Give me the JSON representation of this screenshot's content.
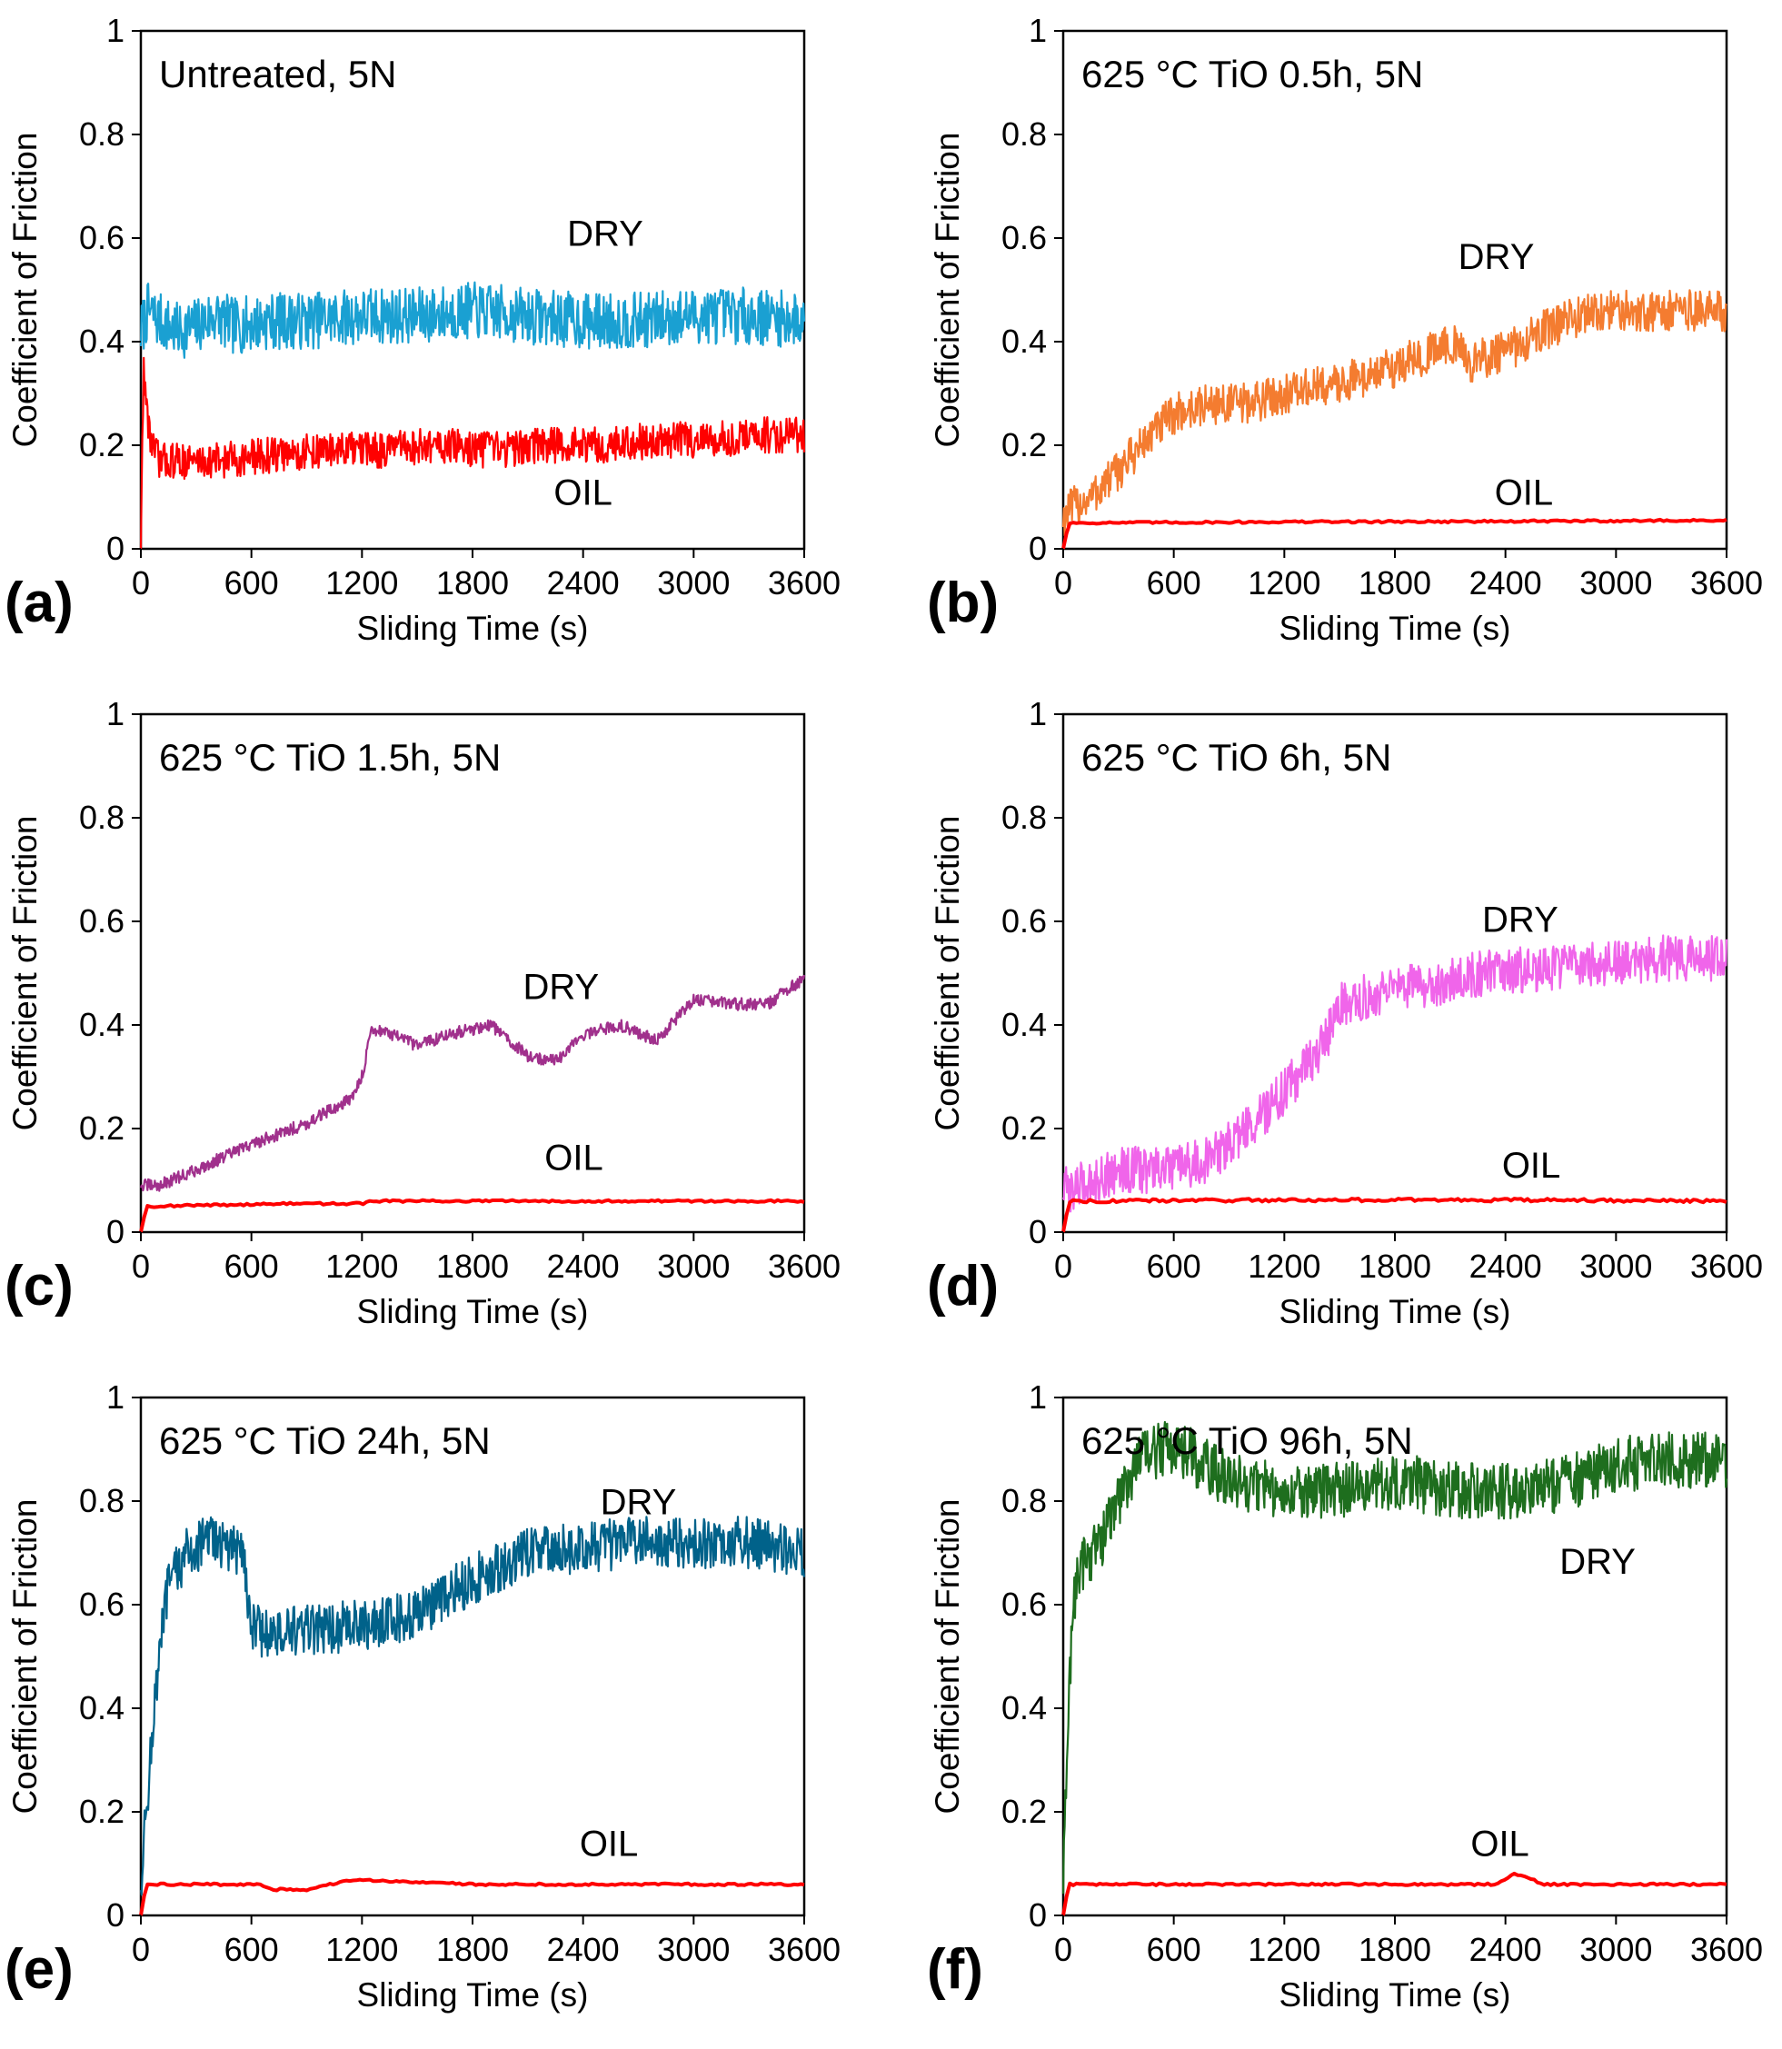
{
  "chart_data": [
    {
      "type": "line",
      "panel": "(a)",
      "title": "Untreated, 5N",
      "xlabel": "Sliding Time (s)",
      "ylabel": "Coefficient of Friction",
      "xlim": [
        0,
        3600
      ],
      "ylim": [
        0,
        1
      ],
      "xticks": [
        "0",
        "600",
        "1200",
        "1800",
        "2400",
        "3000",
        "3600"
      ],
      "yticks": [
        "0",
        "0.2",
        "0.4",
        "0.6",
        "0.8",
        "1"
      ],
      "series": [
        {
          "name": "DRY",
          "color": "#1aa0d2",
          "label_pos": [
            2520,
            0.585
          ],
          "x": [
            0,
            40,
            100,
            200,
            300,
            400,
            500,
            700,
            900,
            1200,
            1500,
            1800,
            2100,
            2400,
            2700,
            3000,
            3300,
            3600
          ],
          "y": [
            0.42,
            0.46,
            0.44,
            0.42,
            0.43,
            0.45,
            0.43,
            0.44,
            0.44,
            0.45,
            0.45,
            0.46,
            0.45,
            0.44,
            0.44,
            0.45,
            0.45,
            0.44
          ],
          "noise": 0.055
        },
        {
          "name": "OIL",
          "color": "#ff0000",
          "label_pos": [
            2400,
            0.085
          ],
          "x": [
            0,
            15,
            30,
            60,
            100,
            200,
            400,
            700,
            1000,
            1300,
            1600,
            1900,
            2200,
            2500,
            2800,
            3100,
            3400,
            3600
          ],
          "y": [
            0.0,
            0.36,
            0.27,
            0.2,
            0.17,
            0.17,
            0.17,
            0.18,
            0.19,
            0.19,
            0.2,
            0.19,
            0.2,
            0.2,
            0.21,
            0.21,
            0.22,
            0.22
          ],
          "noise": 0.035
        }
      ]
    },
    {
      "type": "line",
      "panel": "(b)",
      "title": "625 °C TiO 0.5h, 5N",
      "xlabel": "Sliding Time (s)",
      "ylabel": "Coefficient of Friction",
      "xlim": [
        0,
        3600
      ],
      "ylim": [
        0,
        1
      ],
      "xticks": [
        "0",
        "600",
        "1200",
        "1800",
        "2400",
        "3000",
        "3600"
      ],
      "yticks": [
        "0",
        "0.2",
        "0.4",
        "0.6",
        "0.8",
        "1"
      ],
      "series": [
        {
          "name": "DRY",
          "color": "#f47c30",
          "label_pos": [
            2350,
            0.54
          ],
          "x": [
            0,
            50,
            150,
            300,
            450,
            600,
            800,
            1000,
            1200,
            1500,
            1800,
            2000,
            2100,
            2200,
            2400,
            2600,
            2800,
            3000,
            3300,
            3600
          ],
          "y": [
            0.06,
            0.08,
            0.1,
            0.15,
            0.21,
            0.26,
            0.28,
            0.28,
            0.3,
            0.32,
            0.35,
            0.38,
            0.4,
            0.36,
            0.38,
            0.42,
            0.45,
            0.46,
            0.46,
            0.46
          ],
          "noise": 0.04
        },
        {
          "name": "OIL",
          "color": "#ff0000",
          "label_pos": [
            2500,
            0.085
          ],
          "x": [
            0,
            30,
            60,
            1200,
            2400,
            3600
          ],
          "y": [
            0.0,
            0.05,
            0.05,
            0.052,
            0.053,
            0.055
          ],
          "noise": 0.002
        }
      ]
    },
    {
      "type": "line",
      "panel": "(c)",
      "title": "625 °C TiO 1.5h, 5N",
      "xlabel": "Sliding Time (s)",
      "ylabel": "Coefficient of Friction",
      "xlim": [
        0,
        3600
      ],
      "ylim": [
        0,
        1
      ],
      "xticks": [
        "0",
        "600",
        "1200",
        "1800",
        "2400",
        "3000",
        "3600"
      ],
      "yticks": [
        "0",
        "0.2",
        "0.4",
        "0.6",
        "0.8",
        "1"
      ],
      "series": [
        {
          "name": "DRY",
          "color": "#a0308c",
          "label_pos": [
            2280,
            0.45
          ],
          "x": [
            0,
            100,
            300,
            600,
            900,
            1150,
            1200,
            1250,
            1300,
            1500,
            1650,
            1900,
            2100,
            2250,
            2400,
            2600,
            2800,
            3000,
            3200,
            3400,
            3600
          ],
          "y": [
            0.09,
            0.09,
            0.12,
            0.17,
            0.21,
            0.26,
            0.3,
            0.39,
            0.39,
            0.36,
            0.38,
            0.4,
            0.34,
            0.33,
            0.38,
            0.4,
            0.37,
            0.45,
            0.44,
            0.44,
            0.49
          ],
          "noise": 0.012
        },
        {
          "name": "OIL",
          "color": "#ff0000",
          "label_pos": [
            2350,
            0.12
          ],
          "x": [
            0,
            30,
            60,
            800,
            1200,
            1250,
            3600
          ],
          "y": [
            0.0,
            0.05,
            0.05,
            0.055,
            0.055,
            0.06,
            0.06
          ],
          "noise": 0.002
        }
      ]
    },
    {
      "type": "line",
      "panel": "(d)",
      "title": "625 °C TiO 6h, 5N",
      "xlabel": "Sliding Time (s)",
      "ylabel": "Coefficient of Friction",
      "xlim": [
        0,
        3600
      ],
      "ylim": [
        0,
        1
      ],
      "xticks": [
        "0",
        "600",
        "1200",
        "1800",
        "2400",
        "3000",
        "3600"
      ],
      "yticks": [
        "0",
        "0.2",
        "0.4",
        "0.6",
        "0.8",
        "1"
      ],
      "series": [
        {
          "name": "DRY",
          "color": "#f065ea",
          "label_pos": [
            2480,
            0.58
          ],
          "x": [
            0,
            100,
            300,
            600,
            800,
            1000,
            1200,
            1400,
            1480,
            1500,
            1700,
            2000,
            2300,
            2600,
            3000,
            3300,
            3600
          ],
          "y": [
            0.08,
            0.09,
            0.12,
            0.12,
            0.14,
            0.2,
            0.27,
            0.36,
            0.41,
            0.44,
            0.46,
            0.48,
            0.5,
            0.51,
            0.52,
            0.53,
            0.53
          ],
          "noise": 0.045
        },
        {
          "name": "OIL",
          "color": "#ff0000",
          "label_pos": [
            2540,
            0.105
          ],
          "x": [
            0,
            30,
            60,
            1200,
            2400,
            3600
          ],
          "y": [
            0.0,
            0.06,
            0.06,
            0.062,
            0.062,
            0.06
          ],
          "noise": 0.003
        }
      ]
    },
    {
      "type": "line",
      "panel": "(e)",
      "title": "625 °C TiO 24h, 5N",
      "xlabel": "Sliding Time (s)",
      "ylabel": "Coefficient of Friction",
      "xlim": [
        0,
        3600
      ],
      "ylim": [
        0,
        1
      ],
      "xticks": [
        "0",
        "600",
        "1200",
        "1800",
        "2400",
        "3000",
        "3600"
      ],
      "yticks": [
        "0",
        "0.2",
        "0.4",
        "0.6",
        "0.8",
        "1"
      ],
      "series": [
        {
          "name": "DRY",
          "color": "#00628a",
          "label_pos": [
            2700,
            0.775
          ],
          "x": [
            0,
            50,
            100,
            150,
            250,
            400,
            500,
            550,
            600,
            700,
            900,
            1200,
            1500,
            1800,
            2100,
            2400,
            2700,
            3000,
            3300,
            3600
          ],
          "y": [
            0.06,
            0.3,
            0.5,
            0.64,
            0.7,
            0.73,
            0.7,
            0.72,
            0.56,
            0.54,
            0.55,
            0.56,
            0.58,
            0.65,
            0.7,
            0.71,
            0.72,
            0.72,
            0.72,
            0.7
          ],
          "noise": 0.05
        },
        {
          "name": "OIL",
          "color": "#ff0000",
          "label_pos": [
            2540,
            0.115
          ],
          "x": [
            0,
            30,
            60,
            650,
            700,
            900,
            1100,
            1200,
            1500,
            1800,
            2400,
            3600
          ],
          "y": [
            0.0,
            0.06,
            0.06,
            0.06,
            0.05,
            0.05,
            0.065,
            0.068,
            0.065,
            0.06,
            0.06,
            0.06
          ],
          "noise": 0.002
        }
      ]
    },
    {
      "type": "line",
      "panel": "(f)",
      "title": "625 °C TiO 96h, 5N",
      "xlabel": "Sliding Time (s)",
      "ylabel": "Coefficient of Friction",
      "xlim": [
        0,
        3600
      ],
      "ylim": [
        0,
        1
      ],
      "xticks": [
        "0",
        "600",
        "1200",
        "1800",
        "2400",
        "3000",
        "3600"
      ],
      "yticks": [
        "0",
        "0.2",
        "0.4",
        "0.6",
        "0.8",
        "1"
      ],
      "series": [
        {
          "name": "DRY",
          "color": "#1e6e1e",
          "label_pos": [
            2900,
            0.66
          ],
          "x": [
            0,
            20,
            50,
            100,
            200,
            300,
            400,
            600,
            800,
            1000,
            1200,
            1500,
            1800,
            2100,
            2400,
            2700,
            3000,
            3300,
            3600
          ],
          "y": [
            0.05,
            0.3,
            0.6,
            0.68,
            0.72,
            0.8,
            0.88,
            0.91,
            0.86,
            0.83,
            0.82,
            0.82,
            0.84,
            0.82,
            0.82,
            0.83,
            0.87,
            0.88,
            0.88
          ],
          "noise": 0.055
        },
        {
          "name": "OIL",
          "color": "#ff0000",
          "label_pos": [
            2370,
            0.115
          ],
          "x": [
            0,
            30,
            60,
            2350,
            2400,
            2450,
            2550,
            2600,
            3600
          ],
          "y": [
            0.0,
            0.06,
            0.06,
            0.06,
            0.07,
            0.08,
            0.07,
            0.06,
            0.06
          ],
          "noise": 0.002
        }
      ]
    }
  ]
}
